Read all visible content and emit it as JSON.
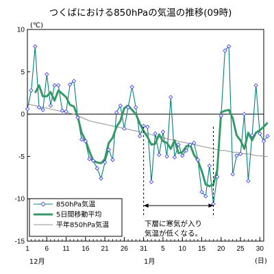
{
  "chart_data": {
    "type": "line",
    "title": "つくばにおける850hPaの気温の推移(09時)",
    "y_unit": "(℃)",
    "ylim": [
      -15,
      10
    ],
    "y_ticks": [
      "10",
      "5",
      "0",
      "-5",
      "-10",
      "-15"
    ],
    "x_ticks": [
      {
        "day": 0,
        "label": "1"
      },
      {
        "day": 5,
        "label": "6"
      },
      {
        "day": 10,
        "label": "11"
      },
      {
        "day": 15,
        "label": "16"
      },
      {
        "day": 20,
        "label": "21"
      },
      {
        "day": 25,
        "label": "26"
      },
      {
        "day": 30,
        "label": "31"
      },
      {
        "day": 35,
        "label": "5"
      },
      {
        "day": 40,
        "label": "10"
      },
      {
        "day": 45,
        "label": "15"
      },
      {
        "day": 50,
        "label": "20"
      },
      {
        "day": 55,
        "label": "25"
      },
      {
        "day": 60,
        "label": "30"
      }
    ],
    "x_range": [
      0,
      61
    ],
    "month_labels": [
      {
        "day": 2.5,
        "label": "12月"
      },
      {
        "day": 31.5,
        "label": "1月"
      }
    ],
    "day_unit": "(日)",
    "colors": {
      "daily": "#008080",
      "moving_avg": "#339966",
      "normal": "#909090",
      "marker_fill": "#ffffff",
      "marker_stroke": "#3030ff"
    },
    "series": [
      {
        "name": "850hPa気温",
        "style": "line-diamond",
        "values": [
          0.6,
          2.8,
          8.0,
          0.8,
          0.5,
          4.7,
          1.0,
          3.4,
          3.4,
          0.4,
          0.3,
          3.5,
          3.9,
          -0.4,
          -3.0,
          -3.2,
          -5.3,
          -5.5,
          -6.4,
          -7.6,
          -5.7,
          -4.2,
          -5.4,
          0.2,
          1.0,
          -1.7,
          0.8,
          3.2,
          0.8,
          -2.6,
          -1.4,
          -1.5,
          -8.0,
          -2.3,
          -4.8,
          -2.1,
          -5.0,
          2.0,
          -5.1,
          -3.6,
          -4.9,
          -4.3,
          -3.6,
          -3.4,
          -5.4,
          -9.2,
          -9.7,
          -6.1,
          -10.6,
          -7.4,
          -0.2,
          7.5,
          8.0,
          -7.1,
          -4.9,
          -4.7,
          0.0,
          -7.9,
          -2.5,
          3.4,
          -2.3,
          -3.2,
          -2.6
        ]
      },
      {
        "name": "5日間移動平均",
        "style": "thick-line",
        "values": [
          null,
          null,
          2.5,
          3.4,
          2.1,
          2.1,
          2.6,
          1.6,
          2.8,
          2.4,
          2.0,
          1.1,
          0.9,
          -0.3,
          -2.2,
          -3.1,
          -4.4,
          -5.5,
          -5.7,
          -5.8,
          -5.3,
          -3.4,
          -2.8,
          -1.5,
          -0.8,
          0.7,
          1.0,
          0.5,
          0.0,
          -1.1,
          -2.0,
          -2.7,
          -3.6,
          -3.5,
          -2.4,
          -3.2,
          -3.4,
          -4.1,
          -3.1,
          -4.6,
          -4.5,
          -3.8,
          -3.6,
          -4.8,
          -5.5,
          -6.7,
          -8.3,
          -8.5,
          -8.3,
          -6.6,
          0.2,
          0.4,
          0.5,
          -0.5,
          -2.5,
          -3.1,
          -4.1,
          -2.2,
          -3.1,
          -2.2,
          -1.9,
          -1.5,
          -1.0
        ]
      },
      {
        "name": "平年850hPa気温",
        "style": "thin-line",
        "values": [
          1.2,
          1.1,
          1.0,
          0.9,
          0.8,
          0.7,
          0.6,
          0.5,
          0.4,
          0.3,
          0.2,
          0.1,
          0.0,
          -0.2,
          -0.4,
          -0.6,
          -0.8,
          -0.9,
          -1.0,
          -1.1,
          -1.2,
          -1.3,
          -1.4,
          -1.5,
          -1.6,
          -1.7,
          -1.8,
          -1.9,
          -2.0,
          -2.1,
          -2.2,
          -2.3,
          -2.4,
          -2.6,
          -2.7,
          -2.8,
          -2.9,
          -3.0,
          -3.1,
          -3.2,
          -3.3,
          -3.4,
          -3.5,
          -3.6,
          -3.7,
          -3.8,
          -3.9,
          -4.0,
          -4.1,
          -4.2,
          -4.3,
          -4.3,
          -4.4,
          -4.5,
          -4.5,
          -4.6,
          -4.7,
          -4.7,
          -4.8,
          -4.9,
          -4.9,
          -5.0,
          -5.0
        ]
      }
    ],
    "legend": {
      "position": "bottom-left",
      "labels": [
        "850hPa気温",
        "5日間移動平均",
        "平年850hPa気温"
      ]
    },
    "annotation": {
      "lines": [
        "下層に寒気が入り",
        "気温が低くなる。"
      ],
      "span_days": [
        30,
        48
      ],
      "arrow_y": -10.8
    },
    "grid": false
  }
}
